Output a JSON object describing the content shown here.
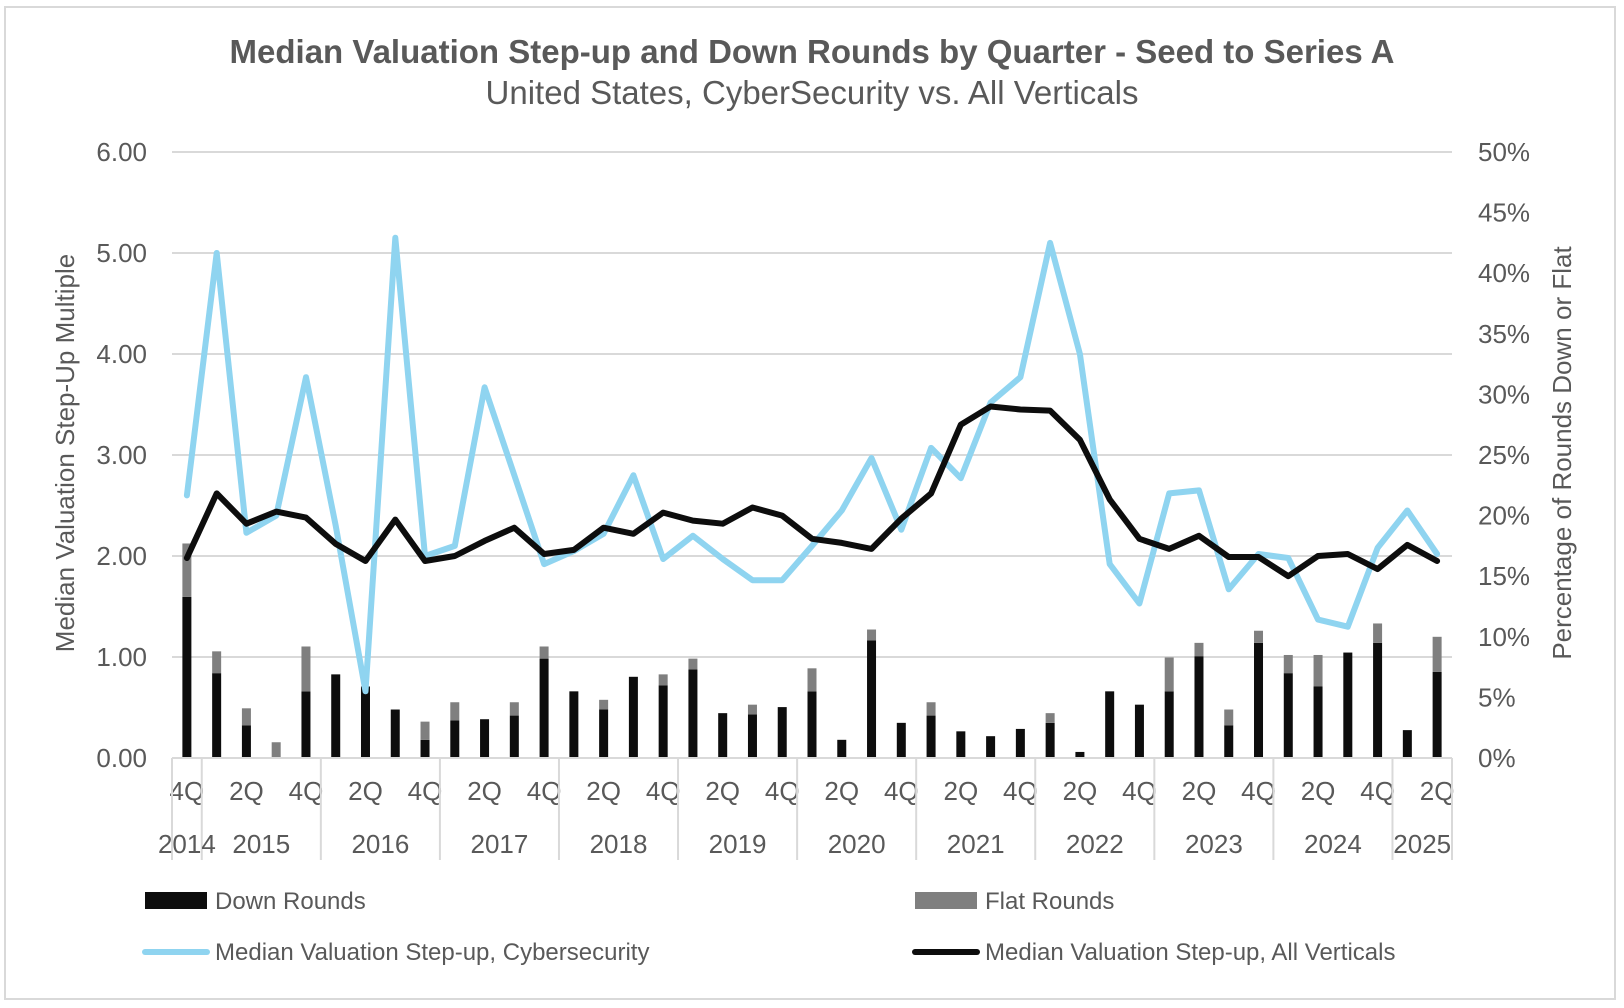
{
  "chart_data": {
    "type": "bar+line",
    "title": "Median Valuation Step-up and Down Rounds by Quarter - Seed to Series A",
    "subtitle": "United States, CyberSecurity vs. All Verticals",
    "ylabel_left": "Median Valuation Step-Up Multiple",
    "ylabel_right": "Percentage of Rounds Down or Flat",
    "ylim_left": [
      0,
      6
    ],
    "ylim_right": [
      0,
      0.5
    ],
    "yticks_left": [
      "0.00",
      "1.00",
      "2.00",
      "3.00",
      "4.00",
      "5.00",
      "6.00"
    ],
    "yticks_right": [
      "0%",
      "5%",
      "10%",
      "15%",
      "20%",
      "25%",
      "30%",
      "35%",
      "40%",
      "45%",
      "50%"
    ],
    "quarters": [
      "4Q",
      "1Q",
      "2Q",
      "3Q",
      "4Q",
      "1Q",
      "2Q",
      "3Q",
      "4Q",
      "1Q",
      "2Q",
      "3Q",
      "4Q",
      "1Q",
      "2Q",
      "3Q",
      "4Q",
      "1Q",
      "2Q",
      "3Q",
      "4Q",
      "1Q",
      "2Q",
      "3Q",
      "4Q",
      "1Q",
      "2Q",
      "3Q",
      "4Q",
      "1Q",
      "2Q",
      "3Q",
      "4Q",
      "1Q",
      "2Q",
      "3Q",
      "4Q",
      "1Q",
      "2Q",
      "3Q",
      "4Q",
      "1Q",
      "2Q"
    ],
    "quarter_labels_shown": [
      "4Q",
      "",
      "2Q",
      "",
      "4Q",
      "",
      "2Q",
      "",
      "4Q",
      "",
      "2Q",
      "",
      "4Q",
      "",
      "2Q",
      "",
      "4Q",
      "",
      "2Q",
      "",
      "4Q",
      "",
      "2Q",
      "",
      "4Q",
      "",
      "2Q",
      "",
      "4Q",
      "",
      "2Q",
      "",
      "4Q",
      "",
      "2Q",
      "",
      "4Q",
      "",
      "2Q",
      "",
      "4Q",
      "",
      "2Q"
    ],
    "years": [
      {
        "label": "2014",
        "start": 0,
        "end": 0
      },
      {
        "label": "2015",
        "start": 1,
        "end": 4
      },
      {
        "label": "2016",
        "start": 5,
        "end": 8
      },
      {
        "label": "2017",
        "start": 9,
        "end": 12
      },
      {
        "label": "2018",
        "start": 13,
        "end": 16
      },
      {
        "label": "2019",
        "start": 17,
        "end": 20
      },
      {
        "label": "2020",
        "start": 21,
        "end": 24
      },
      {
        "label": "2021",
        "start": 25,
        "end": 28
      },
      {
        "label": "2022",
        "start": 29,
        "end": 32
      },
      {
        "label": "2023",
        "start": 33,
        "end": 36
      },
      {
        "label": "2024",
        "start": 37,
        "end": 40
      },
      {
        "label": "2025",
        "start": 41,
        "end": 42
      }
    ],
    "series": [
      {
        "name": "Down Rounds",
        "type": "bar",
        "axis": "right",
        "color": "#0d0d0d",
        "values": [
          0.133,
          0.07,
          0.027,
          0.0,
          0.055,
          0.069,
          0.059,
          0.04,
          0.015,
          0.031,
          0.032,
          0.035,
          0.082,
          0.055,
          0.04,
          0.067,
          0.06,
          0.073,
          0.037,
          0.036,
          0.042,
          0.055,
          0.015,
          0.097,
          0.029,
          0.035,
          0.022,
          0.018,
          0.024,
          0.029,
          0.005,
          0.055,
          0.044,
          0.055,
          0.084,
          0.027,
          0.095,
          0.07,
          0.059,
          0.087,
          0.095,
          0.023,
          0.071
        ]
      },
      {
        "name": "Flat Rounds",
        "type": "bar",
        "axis": "right",
        "color": "#7f7f7f",
        "values": [
          0.044,
          0.018,
          0.014,
          0.013,
          0.037,
          0.0,
          0.0,
          0.0,
          0.015,
          0.015,
          0.0,
          0.011,
          0.01,
          0.0,
          0.008,
          0.0,
          0.009,
          0.009,
          0.0,
          0.008,
          0.0,
          0.019,
          0.0,
          0.009,
          0.0,
          0.011,
          0.0,
          0.0,
          0.0,
          0.008,
          0.0,
          0.0,
          0.0,
          0.028,
          0.011,
          0.013,
          0.01,
          0.015,
          0.026,
          0.0,
          0.016,
          0.0,
          0.029
        ]
      },
      {
        "name": "Median Valuation Step-up, Cybersecurity",
        "type": "line",
        "axis": "left",
        "color": "#8fd4f0",
        "values": [
          2.6,
          5.0,
          2.23,
          2.4,
          3.77,
          2.3,
          0.66,
          5.15,
          2.0,
          2.1,
          3.67,
          2.8,
          1.92,
          2.05,
          2.22,
          2.8,
          1.97,
          2.2,
          1.97,
          1.76,
          1.76,
          2.1,
          2.45,
          2.97,
          2.26,
          3.07,
          2.77,
          3.52,
          3.77,
          5.1,
          4.0,
          1.92,
          1.53,
          2.62,
          2.65,
          1.67,
          2.02,
          1.98,
          1.37,
          1.3,
          2.08,
          2.45,
          2.02
        ]
      },
      {
        "name": "Median Valuation Step-up, All Verticals",
        "type": "line",
        "axis": "left",
        "color": "#0d0d0d",
        "values": [
          1.98,
          2.62,
          2.32,
          2.44,
          2.38,
          2.12,
          1.95,
          2.36,
          1.95,
          2.0,
          2.15,
          2.28,
          2.02,
          2.06,
          2.28,
          2.22,
          2.43,
          2.35,
          2.32,
          2.48,
          2.4,
          2.17,
          2.13,
          2.07,
          2.37,
          2.62,
          3.3,
          3.48,
          3.45,
          3.44,
          3.15,
          2.56,
          2.17,
          2.07,
          2.2,
          1.99,
          1.99,
          1.8,
          2.0,
          2.02,
          1.87,
          2.11,
          1.95
        ]
      }
    ],
    "legend": [
      {
        "label": "Down Rounds",
        "kind": "bar",
        "color": "#0d0d0d"
      },
      {
        "label": "Flat Rounds",
        "kind": "bar",
        "color": "#7f7f7f"
      },
      {
        "label": "Median Valuation Step-up, Cybersecurity",
        "kind": "line",
        "color": "#8fd4f0"
      },
      {
        "label": "Median Valuation Step-up, All Verticals",
        "kind": "line",
        "color": "#0d0d0d"
      }
    ],
    "legend_placement": "bottom",
    "grid": true
  }
}
